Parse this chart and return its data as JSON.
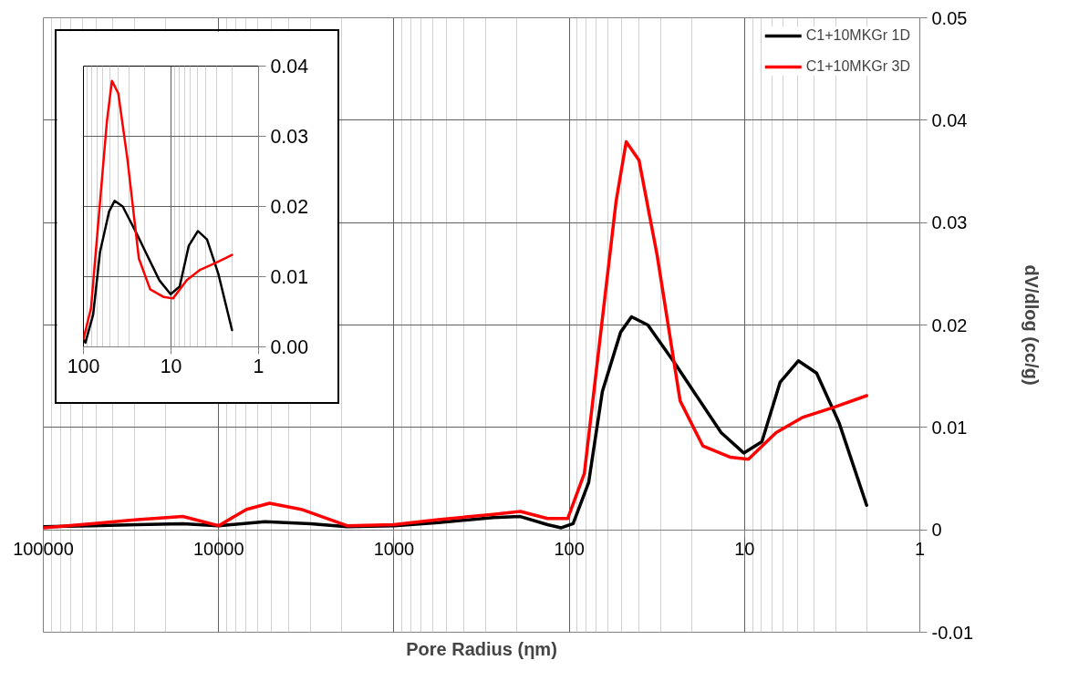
{
  "chart_data": [
    {
      "type": "line",
      "xlabel": "Pore Radius (ηm)",
      "ylabel": "dV/dlog (cc/g)",
      "log": "x",
      "xlim": [
        100000,
        1
      ],
      "xticks": [
        100000,
        10000,
        1000,
        100,
        10,
        1
      ],
      "ylim": [
        -0.01,
        0.05
      ],
      "yticks": [
        -0.01,
        0,
        0.01,
        0.02,
        0.03,
        0.04,
        0.05
      ],
      "grid": true,
      "legend": "top right",
      "series": [
        {
          "name": "C1+10MKGr 1D",
          "color": "#000000",
          "x": [
            100000,
            53000,
            29100,
            16000,
            10000,
            5440,
            2990,
            1850,
            1000,
            558,
            272,
            190,
            133,
            111,
            95,
            77.5,
            64.7,
            50.9,
            44.1,
            35.6,
            24.8,
            19.5,
            13.6,
            10.1,
            7.96,
            6.27,
            4.93,
            3.88,
            2.88,
            2.01
          ],
          "values": [
            0.0003,
            0.0004,
            0.0005,
            0.0006,
            0.0004,
            0.0008,
            0.0006,
            0.0003,
            0.0004,
            0.0007,
            0.0012,
            0.0013,
            0.0005,
            0.0002,
            0.0006,
            0.0046,
            0.0135,
            0.0193,
            0.0208,
            0.02,
            0.0162,
            0.0135,
            0.0095,
            0.0075,
            0.0086,
            0.0144,
            0.0165,
            0.0153,
            0.0104,
            0.0024
          ]
        },
        {
          "name": "C1+10MKGr 3D",
          "color": "#ff0000",
          "x": [
            100000,
            53000,
            29100,
            16000,
            10000,
            6920,
            5120,
            3380,
            1850,
            1000,
            558,
            272,
            190,
            133,
            102,
            82,
            64.7,
            54,
            47.3,
            40,
            31.5,
            23.3,
            17.3,
            12.1,
            9.5,
            6.6,
            4.63,
            3.05,
            2.01
          ],
          "values": [
            0.0002,
            0.0006,
            0.001,
            0.0013,
            0.0004,
            0.002,
            0.0026,
            0.002,
            0.0004,
            0.0005,
            0.001,
            0.0015,
            0.0018,
            0.0011,
            0.0011,
            0.0055,
            0.0206,
            0.0321,
            0.0379,
            0.0361,
            0.0268,
            0.0126,
            0.0082,
            0.0071,
            0.0069,
            0.0095,
            0.011,
            0.012,
            0.0131
          ]
        }
      ]
    },
    {
      "type": "line",
      "log": "x",
      "xlim": [
        100,
        1
      ],
      "xticks": [
        100,
        10,
        1
      ],
      "ylim": [
        0,
        0.04
      ],
      "yticks": [
        {
          "value": 0,
          "label": "0.00"
        },
        {
          "value": 0.01,
          "label": "0.01"
        },
        {
          "value": 0.02,
          "label": "0.02"
        },
        {
          "value": 0.03,
          "label": "0.03"
        },
        {
          "value": 0.04,
          "label": "0.04"
        }
      ],
      "grid": true,
      "series": [
        {
          "color": "#000000",
          "x": [
            100,
            95,
            77.5,
            64.7,
            50.9,
            44.1,
            35.6,
            24.8,
            19.5,
            13.6,
            10.1,
            7.96,
            6.27,
            4.93,
            3.88,
            2.88,
            2.01
          ],
          "values": [
            0.001,
            0.0006,
            0.0046,
            0.0135,
            0.0193,
            0.0208,
            0.02,
            0.0162,
            0.0135,
            0.0095,
            0.0075,
            0.0086,
            0.0144,
            0.0165,
            0.0153,
            0.0104,
            0.0024
          ]
        },
        {
          "color": "#ff0000",
          "x": [
            100,
            82,
            64.7,
            54,
            47.3,
            40,
            31.5,
            23.3,
            17.3,
            12.1,
            9.5,
            6.6,
            4.63,
            3.05,
            2.01
          ],
          "values": [
            0.0011,
            0.0055,
            0.0206,
            0.0321,
            0.0379,
            0.0361,
            0.0268,
            0.0126,
            0.0082,
            0.0071,
            0.0069,
            0.0095,
            0.011,
            0.012,
            0.0131
          ]
        }
      ]
    }
  ]
}
